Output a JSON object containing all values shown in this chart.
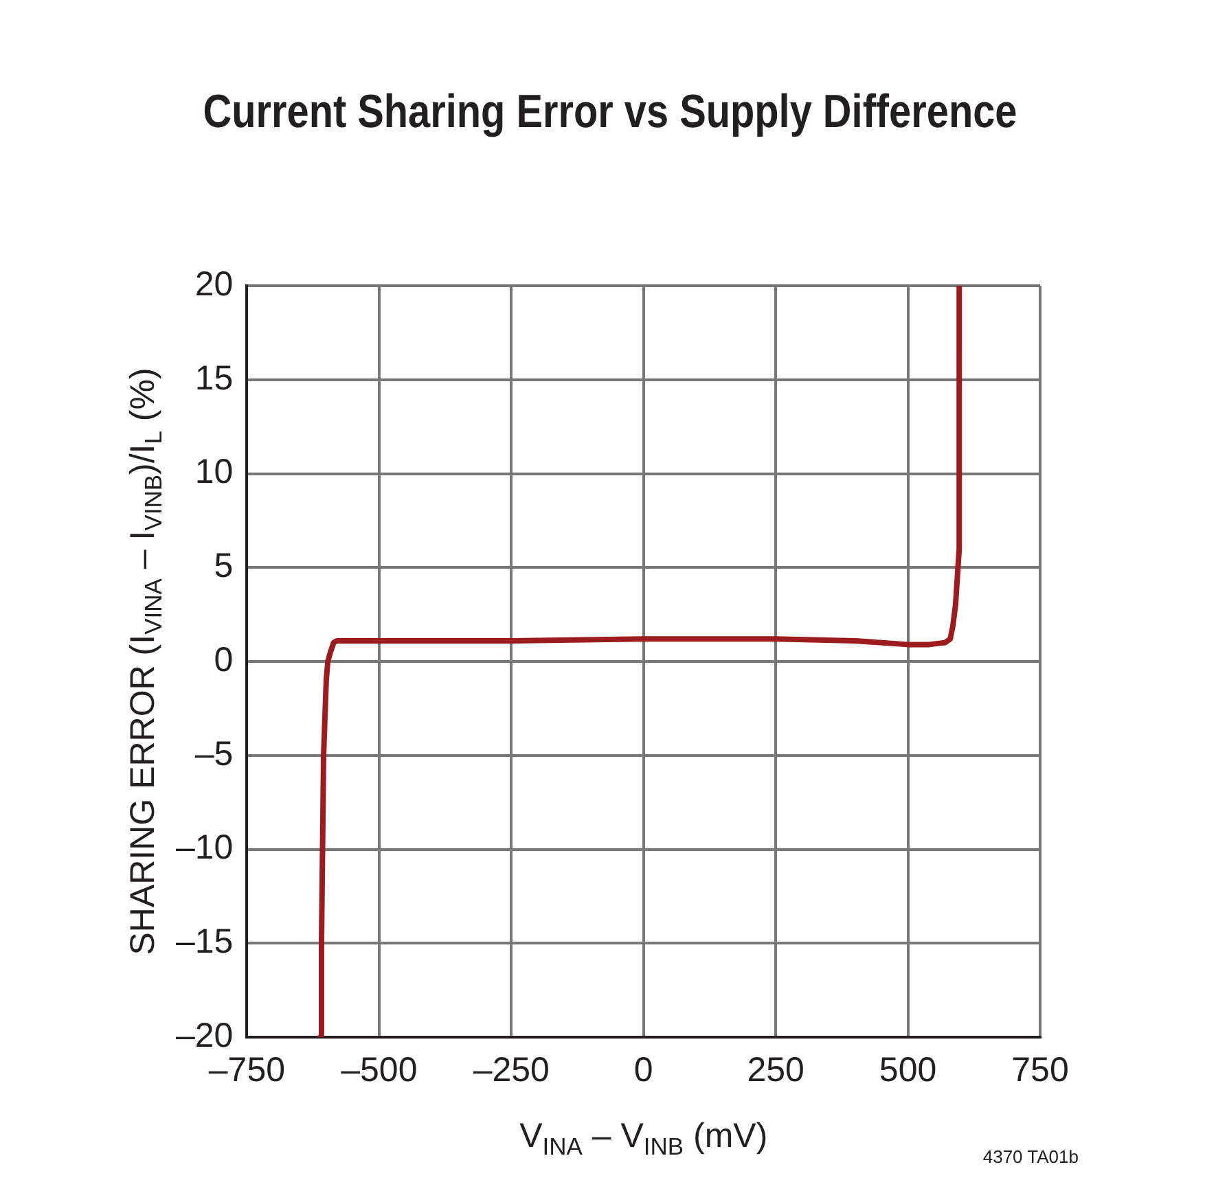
{
  "chart_data": {
    "type": "line",
    "title": "Current Sharing Error vs Supply Difference",
    "xlabel": "V$_{INA}$ – V$_{INB}$ (mV)",
    "ylabel": "SHARING ERROR (I$_{VINA}$ – I$_{VINB}$)/I$_{L}$ (%)",
    "annotations": [
      "4370 TA01b"
    ],
    "xlim": [
      -750,
      750
    ],
    "ylim": [
      -20,
      20
    ],
    "xticks": [
      {
        "value": -750,
        "label": "–750"
      },
      {
        "value": -500,
        "label": "–500"
      },
      {
        "value": -250,
        "label": "–250"
      },
      0,
      250,
      500,
      750
    ],
    "yticks": [
      {
        "value": -20,
        "label": "–20"
      },
      {
        "value": -15,
        "label": "–15"
      },
      {
        "value": -10,
        "label": "–10"
      },
      {
        "value": -5,
        "label": "–5"
      },
      0,
      5,
      10,
      15,
      20
    ],
    "grid": true,
    "legend": false,
    "marker": "none",
    "line_style": "solid",
    "series": [
      {
        "color": "#9b1b1f",
        "x": [
          -611,
          -609,
          -605,
          -600,
          -597,
          -592,
          -586,
          -580,
          -500,
          -250,
          0,
          250,
          400,
          499,
          540,
          570,
          580,
          585,
          590,
          597,
          597
        ],
        "values": [
          -20,
          -15,
          -5,
          -1,
          0,
          0.5,
          1.0,
          1.1,
          1.1,
          1.1,
          1.2,
          1.2,
          1.1,
          0.9,
          0.9,
          1.0,
          1.2,
          1.9,
          3,
          6,
          20
        ]
      }
    ]
  }
}
